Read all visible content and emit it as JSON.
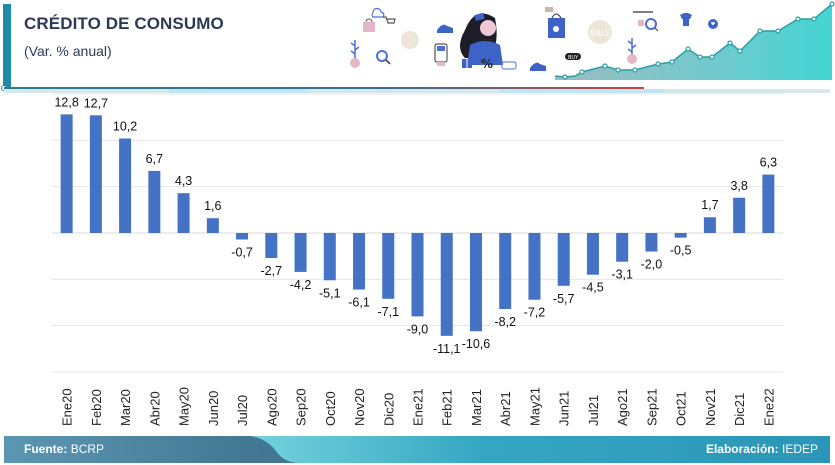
{
  "header": {
    "title": "CRÉDITO DE CONSUMO",
    "subtitle": "(Var. % anual)",
    "banner_icon": "shopping-illustration-banner",
    "banner_text": "SALE",
    "banner_buy": "BUY"
  },
  "footer": {
    "source_label": "Fuente:",
    "source_value": "BCRP",
    "credit_label": "Elaboración:",
    "credit_value": "IEDEP"
  },
  "colors": {
    "bar": "#4472c4",
    "accent": "#1f8aa6",
    "title": "#2b3a55",
    "grid": "#e6e6e6"
  },
  "chart_data": {
    "type": "bar",
    "title": "CRÉDITO DE CONSUMO",
    "subtitle": "(Var. % anual)",
    "xlabel": "",
    "ylabel": "",
    "ylim": [
      -15,
      15
    ],
    "grid_step": 5,
    "grid": true,
    "legend": "none",
    "categories": [
      "Ene20",
      "Feb20",
      "Mar20",
      "Abr20",
      "May20",
      "Jun20",
      "Jul20",
      "Ago20",
      "Sep20",
      "Oct20",
      "Nov20",
      "Dic20",
      "Ene21",
      "Feb21",
      "Mar21",
      "Abr21",
      "May21",
      "Jun21",
      "Jul21",
      "Ago21",
      "Sep21",
      "Oct21",
      "Nov21",
      "Dic21",
      "Ene22"
    ],
    "values": [
      12.8,
      12.7,
      10.2,
      6.7,
      4.3,
      1.6,
      -0.7,
      -2.7,
      -4.2,
      -5.1,
      -6.1,
      -7.1,
      -9.0,
      -11.1,
      -10.6,
      -8.2,
      -7.2,
      -5.7,
      -4.5,
      -3.1,
      -2.0,
      -0.5,
      1.7,
      3.8,
      6.3
    ],
    "labels": [
      "12,8",
      "12,7",
      "10,2",
      "6,7",
      "4,3",
      "1,6",
      "-0,7",
      "-2,7",
      "-4,2",
      "-5,1",
      "-6,1",
      "-7,1",
      "-9,0",
      "-11,1",
      "-10,6",
      "-8,2",
      "-7,2",
      "-5,7",
      "-4,5",
      "-3,1",
      "-2,0",
      "-0,5",
      "1,7",
      "3,8",
      "6,3"
    ]
  }
}
